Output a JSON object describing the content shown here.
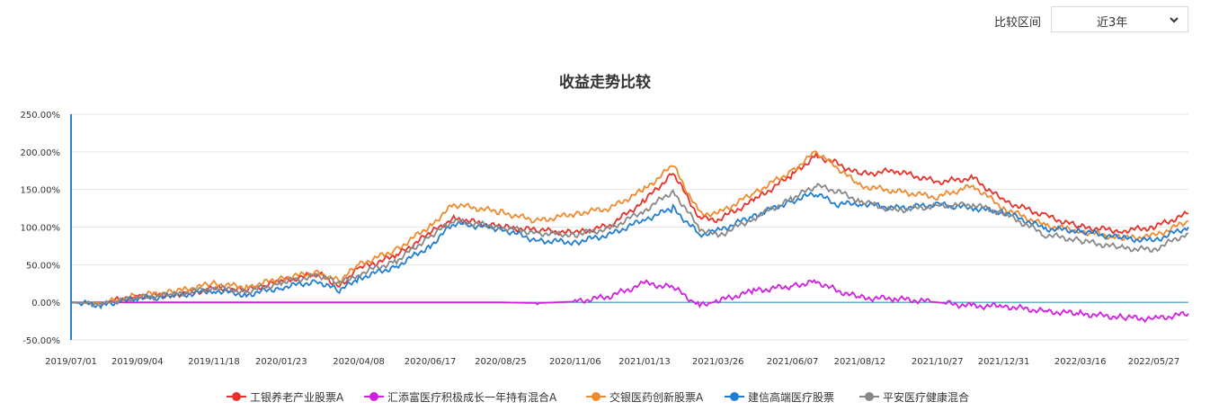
{
  "controls": {
    "period_label": "比较区间",
    "period_value": "近3年",
    "period_icon": "chevron-down-icon"
  },
  "chart_data": {
    "type": "line",
    "title": "收益走势比较",
    "xlabel": "",
    "ylabel": "",
    "ylim": [
      -50,
      250
    ],
    "y_ticks": [
      "250.00%",
      "200.00%",
      "150.00%",
      "100.00%",
      "50.00%",
      "0.00%",
      "-50.00%"
    ],
    "y_tick_values": [
      250,
      200,
      150,
      100,
      50,
      0,
      -50
    ],
    "x_ticks": [
      "2019/07/01",
      "2019/09/04",
      "2019/11/18",
      "2020/01/23",
      "2020/04/08",
      "2020/06/17",
      "2020/08/25",
      "2020/11/06",
      "2021/01/13",
      "2021/03/26",
      "2021/06/07",
      "2021/08/12",
      "2021/10/27",
      "2021/12/31",
      "2022/03/16",
      "2022/05/27"
    ],
    "grid": true,
    "legend_position": "bottom",
    "x": [
      "2019/07/01",
      "2019/08/01",
      "2019/09/04",
      "2019/10/10",
      "2019/11/18",
      "2019/12/20",
      "2020/01/23",
      "2020/02/28",
      "2020/03/20",
      "2020/04/08",
      "2020/05/15",
      "2020/06/17",
      "2020/07/10",
      "2020/08/25",
      "2020/09/30",
      "2020/11/06",
      "2020/12/10",
      "2021/01/13",
      "2021/02/10",
      "2021/03/08",
      "2021/03/26",
      "2021/04/30",
      "2021/06/07",
      "2021/06/30",
      "2021/07/20",
      "2021/08/12",
      "2021/09/15",
      "2021/10/27",
      "2021/12/01",
      "2021/12/31",
      "2022/02/10",
      "2022/03/16",
      "2022/04/26",
      "2022/05/27",
      "2022/06/30"
    ],
    "series": [
      {
        "name": "工银养老产业股票A",
        "color": "#e8312a",
        "values": [
          0,
          -1,
          8,
          10,
          18,
          16,
          28,
          38,
          22,
          45,
          62,
          92,
          112,
          100,
          96,
          92,
          102,
          135,
          172,
          112,
          110,
          135,
          170,
          195,
          185,
          170,
          175,
          160,
          165,
          135,
          115,
          100,
          95,
          100,
          118
        ]
      },
      {
        "name": "汇添富医疗积极成长一年持有混合A",
        "color": "#d21fe1",
        "values": [
          0,
          0,
          0,
          0,
          0,
          0,
          0,
          0,
          0,
          0,
          0,
          0,
          0,
          0,
          -1,
          1,
          8,
          25,
          20,
          -5,
          2,
          15,
          22,
          28,
          16,
          6,
          5,
          0,
          -5,
          -5,
          -12,
          -15,
          -20,
          -22,
          -15
        ]
      },
      {
        "name": "交银医药创新股票A",
        "color": "#ef8a2e",
        "values": [
          0,
          -1,
          9,
          14,
          25,
          20,
          32,
          40,
          28,
          50,
          70,
          102,
          130,
          120,
          108,
          118,
          125,
          150,
          182,
          118,
          118,
          145,
          175,
          200,
          180,
          155,
          148,
          140,
          155,
          125,
          102,
          95,
          85,
          88,
          108
        ]
      },
      {
        "name": "建信高端医疗股票",
        "color": "#1f7ed3",
        "values": [
          0,
          -4,
          5,
          8,
          16,
          10,
          20,
          28,
          15,
          32,
          48,
          75,
          105,
          98,
          82,
          80,
          90,
          110,
          125,
          90,
          95,
          115,
          135,
          145,
          130,
          132,
          125,
          130,
          125,
          120,
          98,
          95,
          85,
          82,
          100
        ]
      },
      {
        "name": "平安医疗健康混合",
        "color": "#888888",
        "values": [
          0,
          -2,
          6,
          10,
          20,
          14,
          26,
          36,
          25,
          38,
          55,
          88,
          108,
          100,
          92,
          90,
          98,
          122,
          148,
          98,
          88,
          112,
          138,
          155,
          148,
          135,
          122,
          128,
          130,
          118,
          90,
          82,
          72,
          70,
          92
        ]
      }
    ]
  }
}
